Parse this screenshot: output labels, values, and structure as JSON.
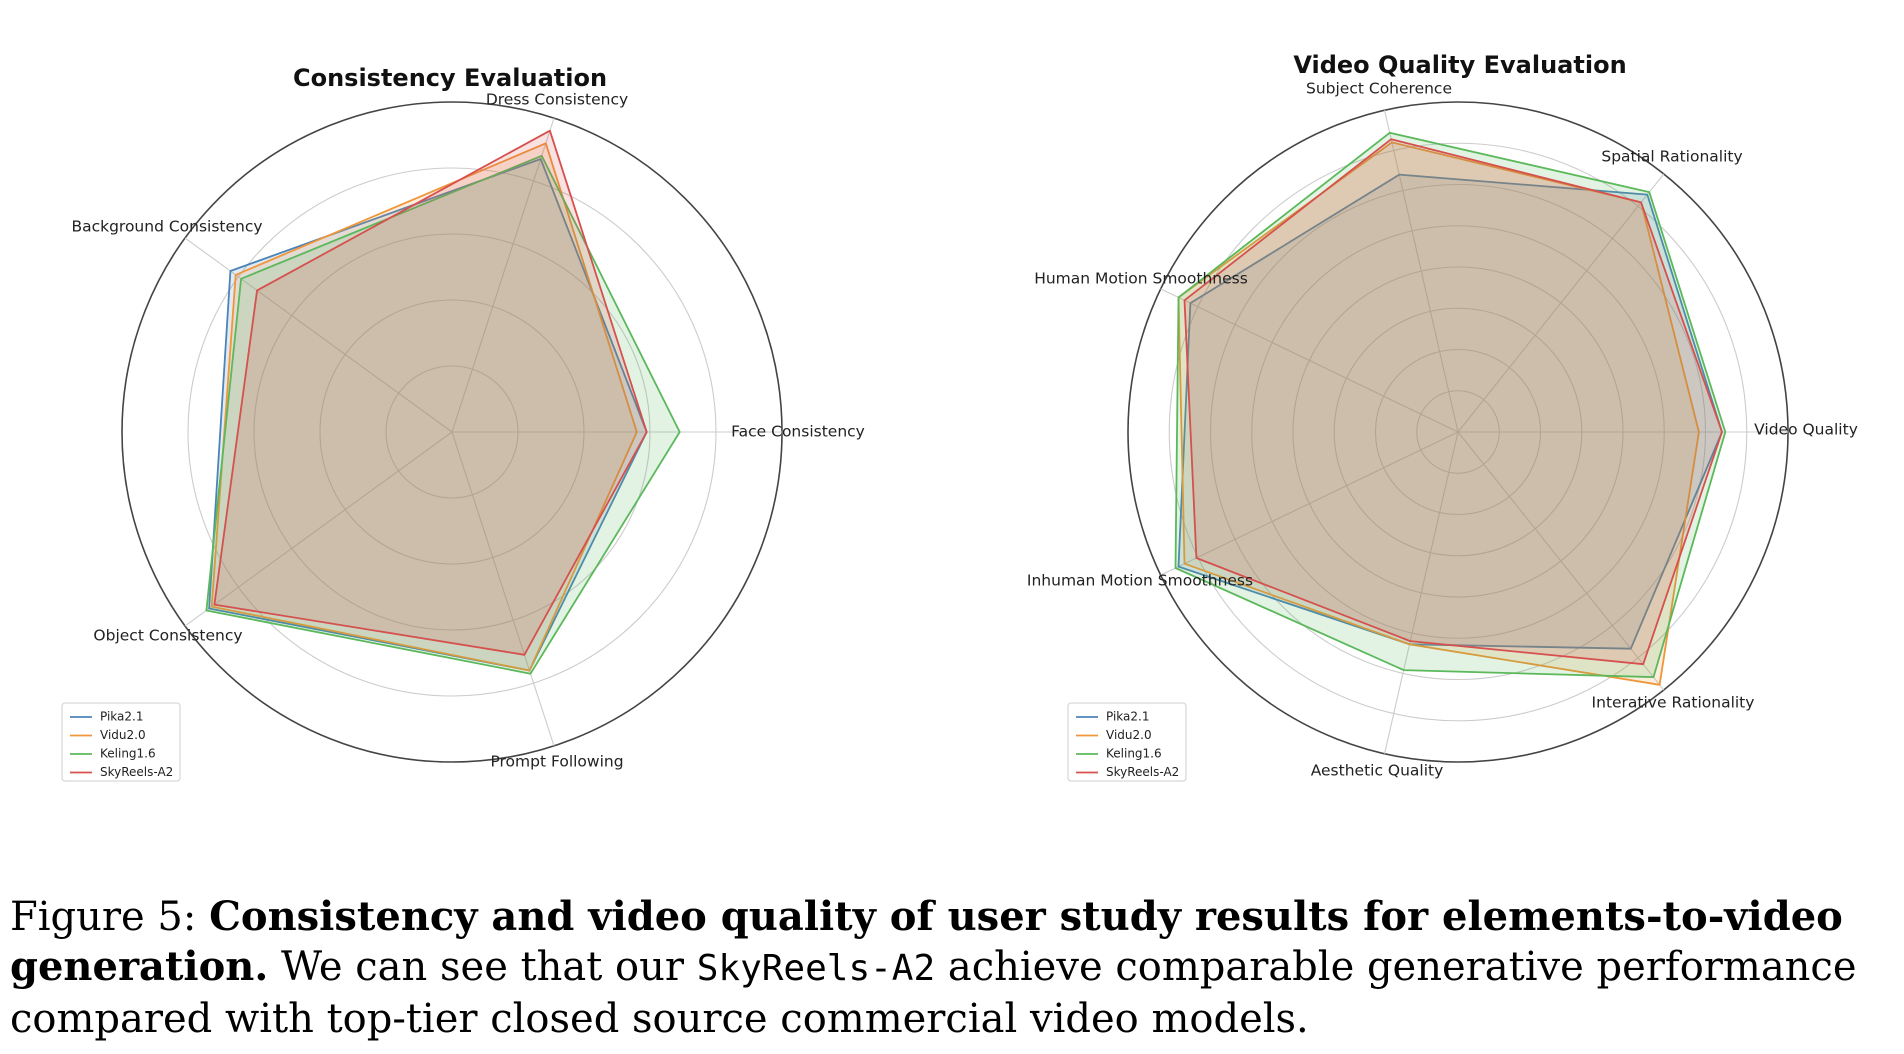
{
  "chart_data": [
    {
      "type": "radar",
      "title": "Consistency Evaluation",
      "axes": [
        "Face Consistency",
        "Dress Consistency",
        "Background Consistency",
        "Object Consistency",
        "Prompt Following"
      ],
      "rlim": [
        0,
        1
      ],
      "grid": true,
      "legend_position": "bottom-left",
      "series": [
        {
          "name": "Pika2.1",
          "color": "#4c84b8",
          "values": [
            0.59,
            0.87,
            0.83,
            0.91,
            0.76
          ]
        },
        {
          "name": "Vidu2.0",
          "color": "#f0963a",
          "values": [
            0.56,
            0.92,
            0.81,
            0.9,
            0.76
          ]
        },
        {
          "name": "Keling1.6",
          "color": "#5bb85b",
          "values": [
            0.69,
            0.88,
            0.79,
            0.92,
            0.77
          ]
        },
        {
          "name": "SkyReels-A2",
          "color": "#d6504e",
          "values": [
            0.59,
            0.96,
            0.73,
            0.89,
            0.71
          ]
        }
      ]
    },
    {
      "type": "radar",
      "title": "Video Quality Evaluation",
      "axes": [
        "Video Quality",
        "Spatial Rationality",
        "Subject Coherence",
        "Human Motion Smoothness",
        "Inhuman Motion Smoothness",
        "Aesthetic Quality",
        "Interative Rationality"
      ],
      "rlim": [
        0,
        1
      ],
      "grid": true,
      "legend_position": "bottom-left",
      "series": [
        {
          "name": "Pika2.1",
          "color": "#4c84b8",
          "values": [
            0.8,
            0.92,
            0.8,
            0.9,
            0.94,
            0.66,
            0.84
          ]
        },
        {
          "name": "Vidu2.0",
          "color": "#f0963a",
          "values": [
            0.73,
            0.89,
            0.9,
            0.94,
            0.92,
            0.66,
            0.98
          ]
        },
        {
          "name": "Keling1.6",
          "color": "#5bb85b",
          "values": [
            0.81,
            0.93,
            0.93,
            0.94,
            0.95,
            0.74,
            0.95
          ]
        },
        {
          "name": "SkyReels-A2",
          "color": "#d6504e",
          "values": [
            0.8,
            0.89,
            0.91,
            0.92,
            0.88,
            0.65,
            0.9
          ]
        }
      ]
    }
  ],
  "caption": {
    "label": "Figure 5: ",
    "bold": "Consistency and video quality of user study results for elements-to-video generation.",
    "text_before": "We can see that our ",
    "model": "SkyReels-A2",
    "text_after": " achieve comparable generative performance compared with top-tier closed source commercial video models."
  }
}
